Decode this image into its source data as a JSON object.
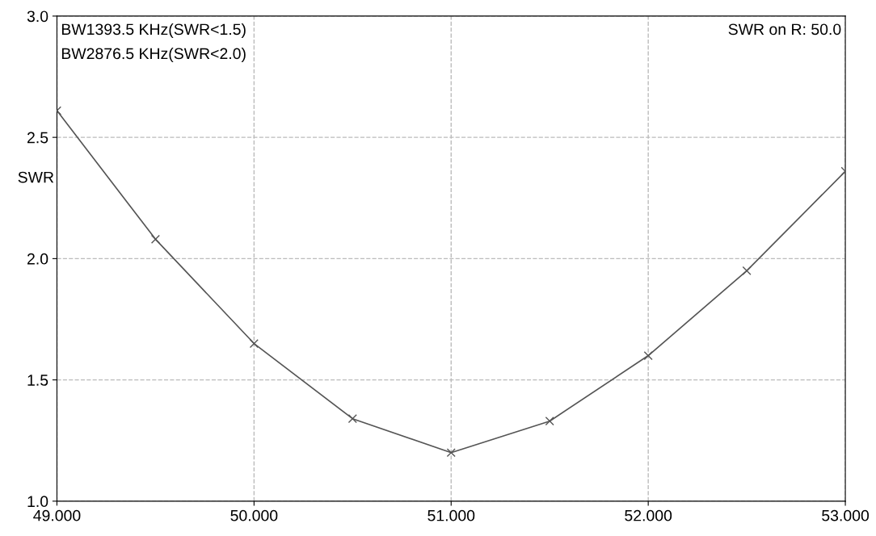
{
  "chart_data": {
    "type": "line",
    "ylabel": "SWR",
    "x": [
      49.0,
      49.5,
      50.0,
      50.5,
      51.0,
      51.5,
      52.0,
      52.5,
      53.0
    ],
    "series": [
      {
        "color": "#555555",
        "values": [
          2.61,
          2.08,
          1.65,
          1.34,
          1.2,
          1.33,
          1.6,
          1.95,
          2.36
        ]
      }
    ],
    "xlim": [
      49,
      53
    ],
    "ylim": [
      1.0,
      3.0
    ],
    "xticks": [
      {
        "value": 49,
        "label": "49.000"
      },
      {
        "value": 50,
        "label": "50.000"
      },
      {
        "value": 51,
        "label": "51.000"
      },
      {
        "value": 52,
        "label": "52.000"
      },
      {
        "value": 53,
        "label": "53.000"
      }
    ],
    "yticks": [
      {
        "value": 1.0,
        "label": "1.0"
      },
      {
        "value": 1.5,
        "label": "1.5"
      },
      {
        "value": 2.0,
        "label": "2.0"
      },
      {
        "value": 2.5,
        "label": "2.5"
      },
      {
        "value": 3.0,
        "label": "3.0"
      }
    ],
    "annotations": [
      "BW1393.5 KHz(SWR<1.5)",
      "BW2876.5 KHz(SWR<2.0)",
      "SWR on R: 50.0"
    ],
    "grid": true,
    "marker": "cross",
    "line_style": "solid"
  }
}
